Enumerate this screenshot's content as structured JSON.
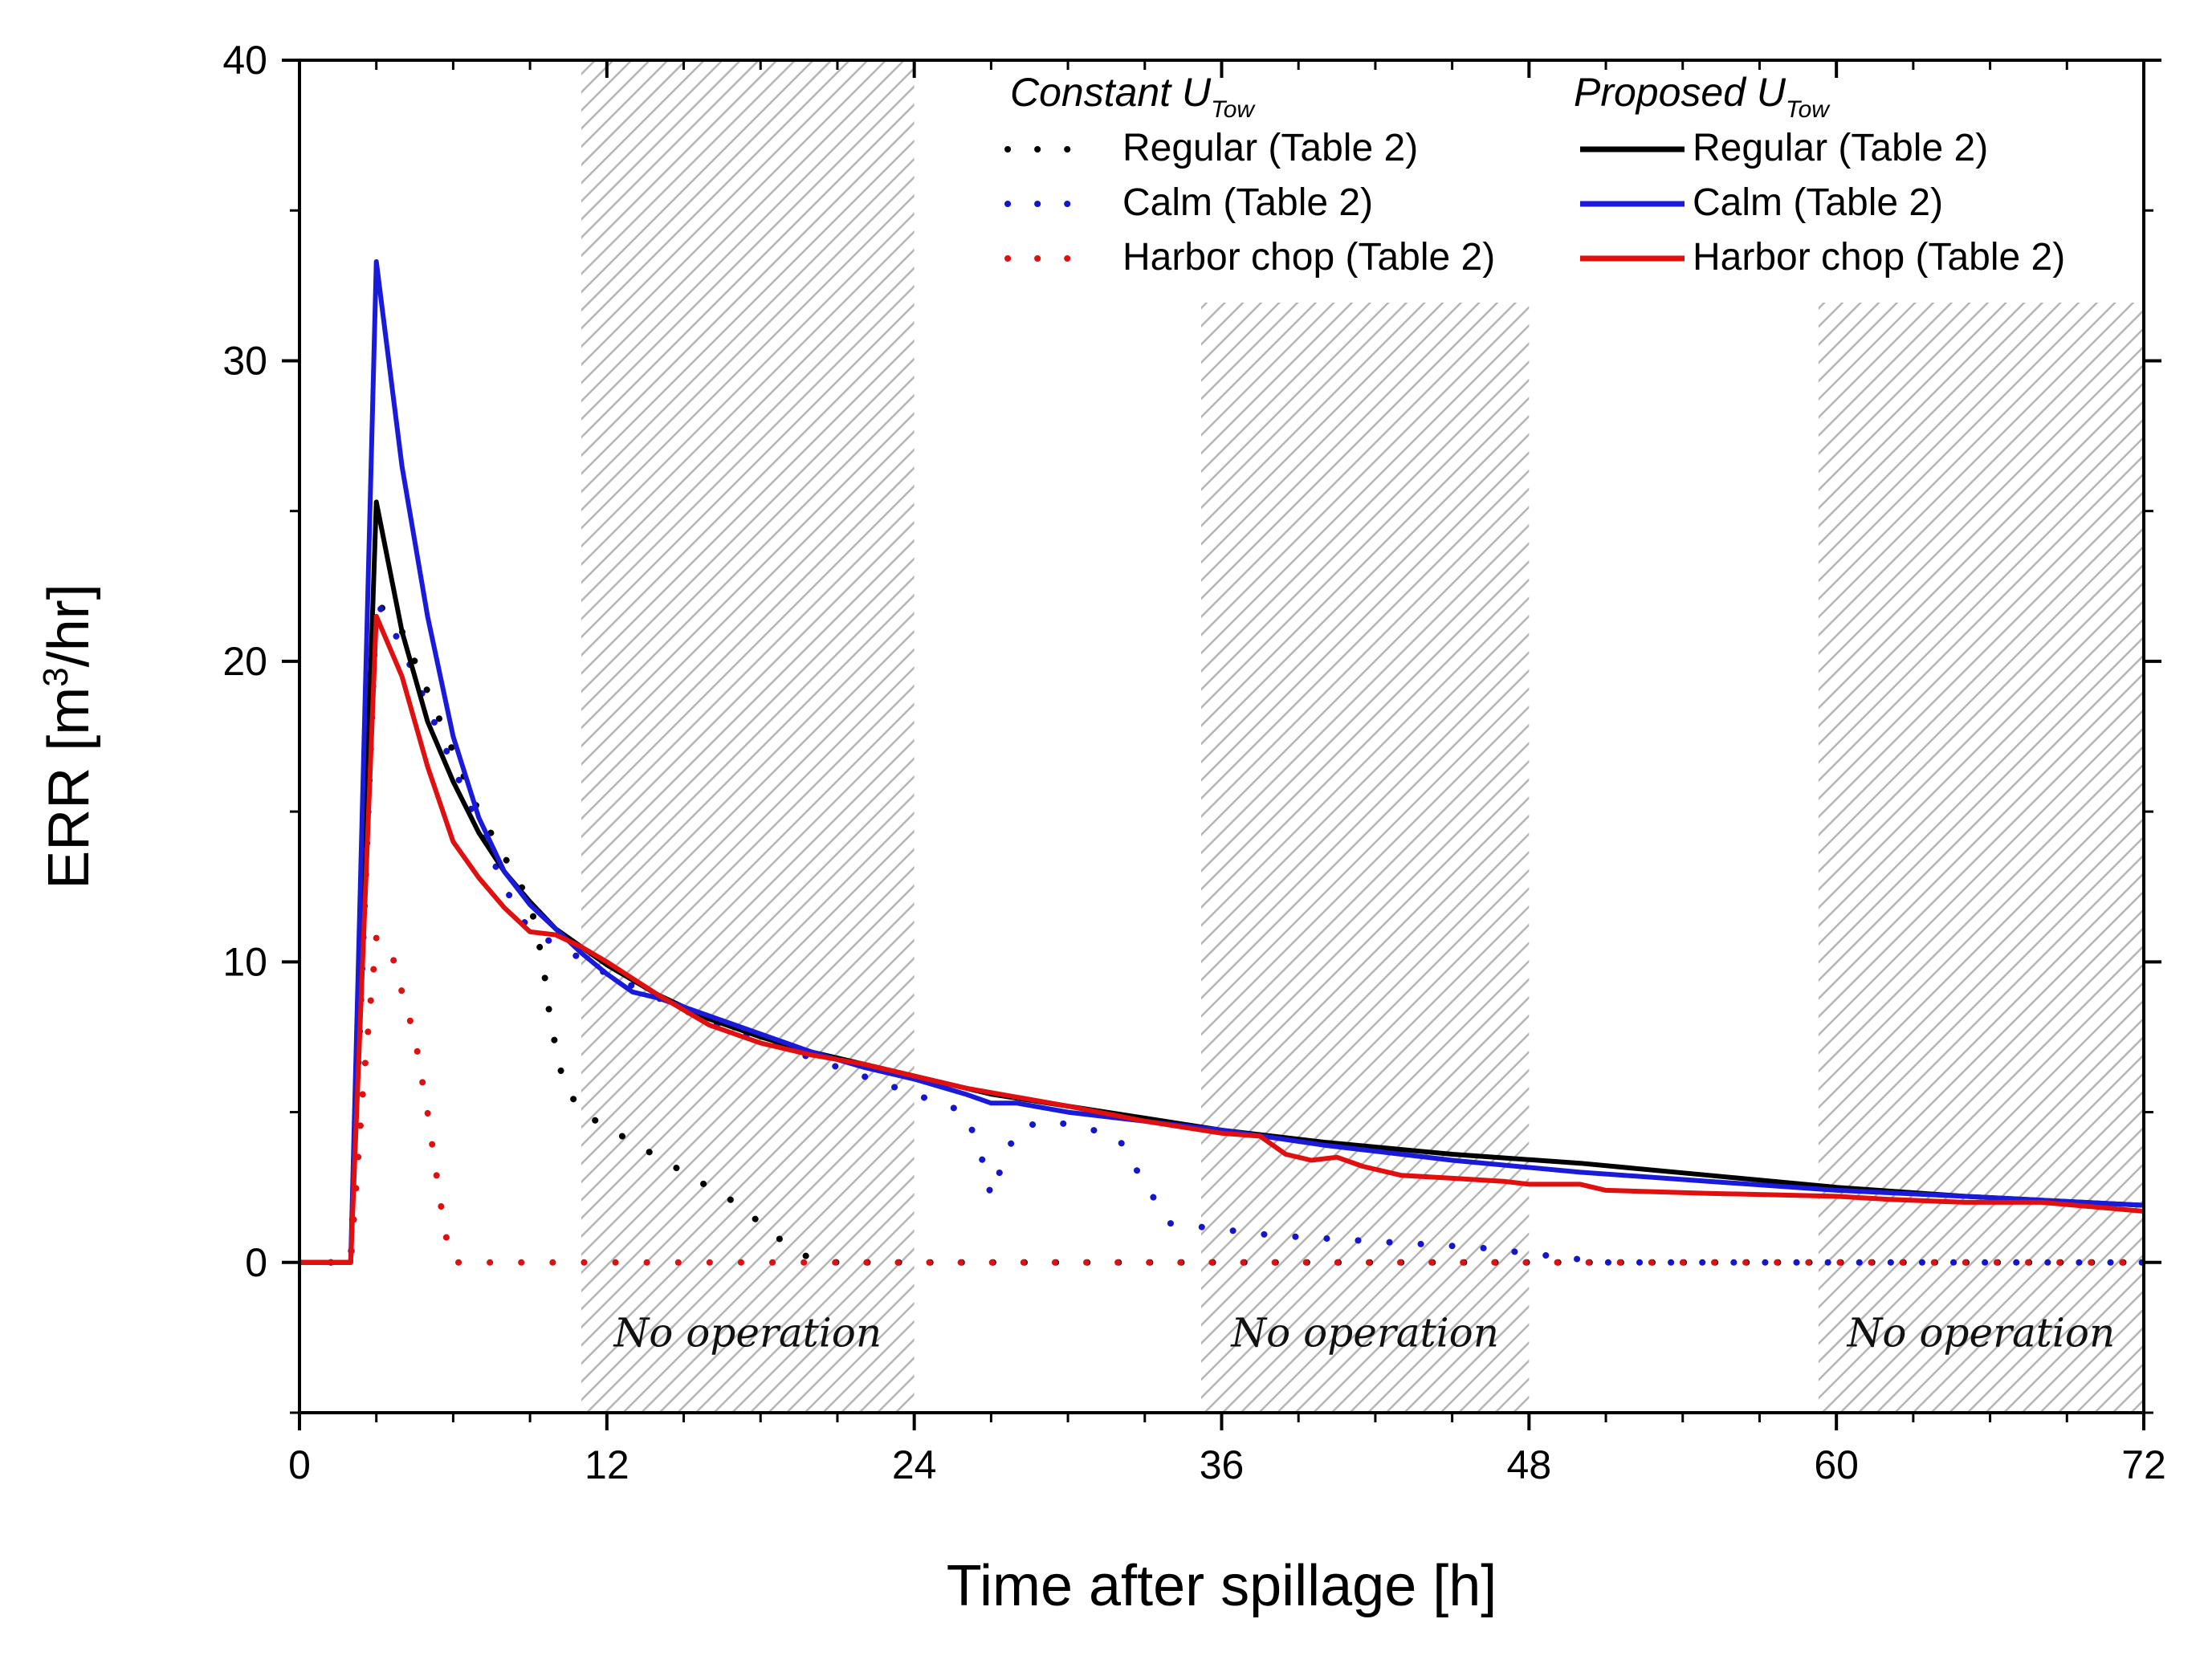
{
  "chart_data": {
    "type": "line",
    "xlabel": "Time after spillage [h]",
    "ylabel_main": "ERR [m",
    "ylabel_sup": "3",
    "ylabel_end": "/hr]",
    "xlim": [
      0,
      72
    ],
    "ylim": [
      -5,
      40
    ],
    "xticks": [
      0,
      12,
      24,
      36,
      48,
      60,
      72
    ],
    "yticks": [
      0,
      10,
      20,
      30,
      40
    ],
    "bands": [
      {
        "x0": 11,
        "x1": 24,
        "label": "No operation"
      },
      {
        "x0": 35.2,
        "x1": 48,
        "label": "No operation"
      },
      {
        "x0": 59.3,
        "x1": 72,
        "label": "No operation"
      }
    ],
    "legend": {
      "constant_header": "Constant U",
      "constant_sub": "Tow",
      "proposed_header": "Proposed U",
      "proposed_sub": "Tow"
    },
    "series": [
      {
        "name": "Regular (Table 2)",
        "group": "constant",
        "color": "#000000",
        "style": "dotted",
        "x": [
          0,
          2,
          3,
          4,
          5,
          6,
          7,
          8,
          9,
          9.5,
          9.8,
          10.3,
          11,
          12,
          13,
          14,
          15,
          16,
          17,
          18,
          19,
          20,
          21,
          72
        ],
        "y": [
          0,
          0,
          22,
          21,
          19,
          17,
          15,
          13.5,
          12,
          10,
          8,
          6,
          5,
          4.5,
          4,
          3.5,
          3,
          2.5,
          2,
          1.3,
          0.6,
          0.1,
          0,
          0
        ]
      },
      {
        "name": "Calm (Table 2)",
        "group": "constant",
        "color": "#1515cc",
        "style": "dotted",
        "x": [
          0,
          2,
          3,
          4,
          5,
          6,
          7,
          8,
          9,
          10,
          11,
          12,
          13,
          14,
          15,
          16,
          17,
          18,
          19,
          20,
          21,
          22,
          23,
          24,
          25,
          26,
          26.6,
          27,
          27.5,
          28,
          29,
          30,
          31,
          32,
          33,
          34,
          36,
          38,
          40,
          42,
          44,
          46,
          48,
          49,
          50,
          51,
          72
        ],
        "y": [
          0,
          0,
          22,
          20.5,
          18.5,
          16.5,
          14.5,
          12.5,
          11,
          10.6,
          10.1,
          9.6,
          9.2,
          8.8,
          8.4,
          8,
          7.7,
          7.4,
          7.1,
          6.8,
          6.5,
          6.2,
          5.9,
          5.6,
          5.3,
          5,
          3.6,
          2.2,
          3.4,
          4.4,
          4.7,
          4.6,
          4.4,
          4.1,
          2.6,
          1.3,
          1.1,
          0.9,
          0.8,
          0.7,
          0.6,
          0.5,
          0.3,
          0.2,
          0.1,
          0,
          0
        ]
      },
      {
        "name": "Harbor chop (Table 2)",
        "group": "constant",
        "color": "#dd1111",
        "style": "dotted",
        "x": [
          0,
          2,
          2.5,
          3,
          3.5,
          4,
          4.5,
          5,
          5.5,
          5.8,
          6,
          72
        ],
        "y": [
          0,
          0,
          6,
          10.8,
          10.6,
          9,
          7.5,
          5,
          2,
          0.5,
          0,
          0
        ]
      },
      {
        "name": "Regular (Table 2)",
        "group": "proposed",
        "color": "#000000",
        "style": "solid",
        "x": [
          0,
          2,
          3,
          4,
          5,
          6,
          7,
          8,
          9,
          10,
          11,
          12,
          14,
          16,
          18,
          20,
          22,
          24,
          27,
          30,
          33,
          36,
          40,
          45,
          50,
          55,
          60,
          65,
          72
        ],
        "y": [
          0,
          0,
          25.3,
          21,
          18,
          16,
          14.3,
          13,
          12,
          11.1,
          10.5,
          9.9,
          8.9,
          8.1,
          7.5,
          7,
          6.6,
          6.2,
          5.6,
          5.2,
          4.8,
          4.4,
          4.0,
          3.6,
          3.3,
          2.9,
          2.5,
          2.2,
          1.9
        ]
      },
      {
        "name": "Calm (Table 2)",
        "group": "proposed",
        "color": "#1a1adb",
        "style": "solid",
        "x": [
          0,
          2,
          3,
          4,
          5,
          6,
          7,
          8,
          9,
          10,
          11,
          12,
          13,
          14,
          15,
          16,
          18,
          20,
          22,
          24,
          26,
          27,
          28,
          30,
          33,
          36,
          40,
          45,
          50,
          55,
          60,
          65,
          72
        ],
        "y": [
          0,
          0,
          33.3,
          26.5,
          21.5,
          17.5,
          14.8,
          13,
          11.9,
          11.1,
          10.3,
          9.6,
          9.0,
          8.8,
          8.5,
          8.2,
          7.6,
          7.0,
          6.5,
          6.1,
          5.6,
          5.3,
          5.3,
          5.0,
          4.7,
          4.4,
          3.9,
          3.4,
          3.0,
          2.7,
          2.4,
          2.2,
          1.9
        ]
      },
      {
        "name": "Harbor chop (Table 2)",
        "group": "proposed",
        "color": "#e01010",
        "style": "solid",
        "x": [
          0,
          2,
          3,
          4,
          5,
          6,
          7,
          8,
          9,
          10,
          11,
          12,
          14,
          16,
          18,
          20,
          22,
          24,
          26,
          28,
          30,
          33,
          36,
          37.5,
          38.5,
          39.5,
          40.5,
          41.5,
          43,
          45,
          47,
          48,
          50,
          51,
          55,
          60,
          62,
          65,
          68,
          72
        ],
        "y": [
          0,
          0,
          21.5,
          19.5,
          16.5,
          14,
          12.8,
          11.8,
          11,
          10.9,
          10.5,
          10,
          8.9,
          7.9,
          7.3,
          6.9,
          6.6,
          6.2,
          5.8,
          5.5,
          5.2,
          4.7,
          4.3,
          4.2,
          3.6,
          3.4,
          3.5,
          3.2,
          2.9,
          2.8,
          2.7,
          2.6,
          2.6,
          2.4,
          2.3,
          2.2,
          2.1,
          2.0,
          2.0,
          1.7
        ]
      }
    ]
  }
}
